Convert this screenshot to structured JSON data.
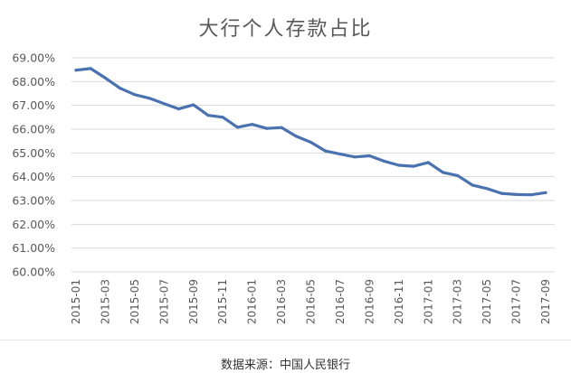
{
  "chart_data": {
    "type": "line",
    "title": "大行个人存款占比",
    "xlabel": "",
    "ylabel": "",
    "ylim": [
      60,
      69
    ],
    "yticks": [
      "69.00%",
      "68.00%",
      "67.00%",
      "66.00%",
      "65.00%",
      "64.00%",
      "63.00%",
      "62.00%",
      "61.00%",
      "60.00%"
    ],
    "grid": true,
    "legend": "none",
    "line_color": "#4a72b0",
    "grid_color": "#d9d9d9",
    "x_tick_labels": [
      "2015-01",
      "2015-03",
      "2015-05",
      "2015-07",
      "2015-09",
      "2015-11",
      "2016-01",
      "2016-03",
      "2016-05",
      "2016-07",
      "2016-09",
      "2016-11",
      "2017-01",
      "2017-03",
      "2017-05",
      "2017-07",
      "2017-09"
    ],
    "x": [
      "2015-01",
      "2015-02",
      "2015-03",
      "2015-04",
      "2015-05",
      "2015-06",
      "2015-07",
      "2015-08",
      "2015-09",
      "2015-10",
      "2015-11",
      "2015-12",
      "2016-01",
      "2016-02",
      "2016-03",
      "2016-04",
      "2016-05",
      "2016-06",
      "2016-07",
      "2016-08",
      "2016-09",
      "2016-10",
      "2016-11",
      "2016-12",
      "2017-01",
      "2017-02",
      "2017-03",
      "2017-04",
      "2017-05",
      "2017-06",
      "2017-07",
      "2017-08",
      "2017-09"
    ],
    "series": [
      {
        "values": [
          68.48,
          68.55,
          68.15,
          67.72,
          67.45,
          67.3,
          67.07,
          66.85,
          67.02,
          66.58,
          66.5,
          66.08,
          66.2,
          66.03,
          66.07,
          65.7,
          65.45,
          65.08,
          64.95,
          64.83,
          64.88,
          64.65,
          64.48,
          64.44,
          64.6,
          64.18,
          64.05,
          63.65,
          63.5,
          63.3,
          63.25,
          63.24,
          63.33
        ]
      }
    ]
  },
  "footer": {
    "source": "数据来源：中国人民银行"
  }
}
